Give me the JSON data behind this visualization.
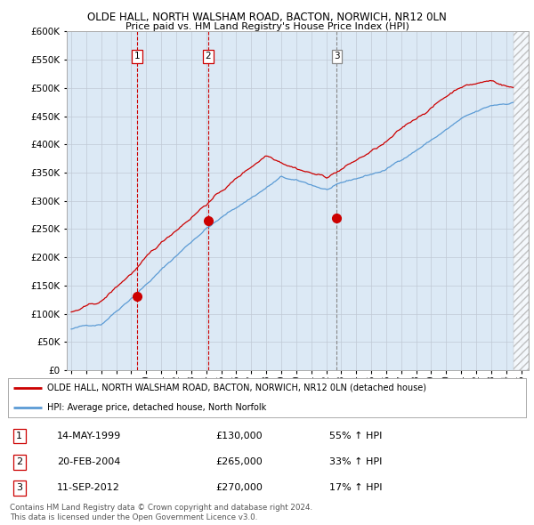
{
  "title1": "OLDE HALL, NORTH WALSHAM ROAD, BACTON, NORWICH, NR12 0LN",
  "title2": "Price paid vs. HM Land Registry's House Price Index (HPI)",
  "ytick_values": [
    0,
    50000,
    100000,
    150000,
    200000,
    250000,
    300000,
    350000,
    400000,
    450000,
    500000,
    550000,
    600000
  ],
  "xlim_start": 1994.7,
  "xlim_end": 2025.5,
  "ylim_min": 0,
  "ylim_max": 600000,
  "sale_dates": [
    1999.37,
    2004.13,
    2012.71
  ],
  "sale_prices": [
    130000,
    265000,
    270000
  ],
  "sale_labels": [
    "1",
    "2",
    "3"
  ],
  "hpi_line_color": "#5b9bd5",
  "price_line_color": "#cc0000",
  "vline_colors": [
    "#cc0000",
    "#cc0000",
    "#888888"
  ],
  "chart_bg_color": "#dce9f5",
  "hatch_start": 2024.5,
  "legend_label_price": "OLDE HALL, NORTH WALSHAM ROAD, BACTON, NORWICH, NR12 0LN (detached house)",
  "legend_label_hpi": "HPI: Average price, detached house, North Norfolk",
  "table_rows": [
    {
      "num": "1",
      "date": "14-MAY-1999",
      "price": "£130,000",
      "pct": "55% ↑ HPI"
    },
    {
      "num": "2",
      "date": "20-FEB-2004",
      "price": "£265,000",
      "pct": "33% ↑ HPI"
    },
    {
      "num": "3",
      "date": "11-SEP-2012",
      "price": "£270,000",
      "pct": "17% ↑ HPI"
    }
  ],
  "footnote1": "Contains HM Land Registry data © Crown copyright and database right 2024.",
  "footnote2": "This data is licensed under the Open Government Licence v3.0.",
  "background_color": "#ffffff",
  "grid_color": "#c0c8d4"
}
